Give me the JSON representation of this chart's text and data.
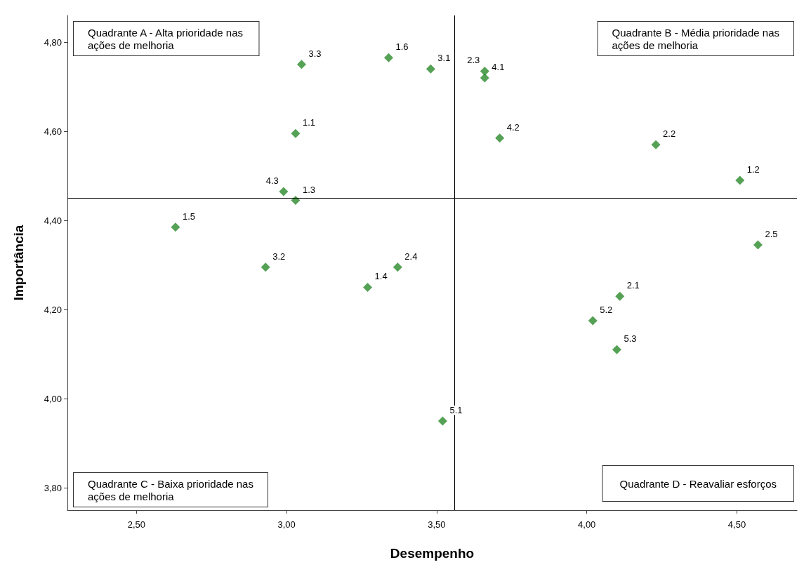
{
  "chart_data": {
    "type": "scatter",
    "xlabel": "Desempenho",
    "ylabel": "Importância",
    "x": [
      3.05,
      3.34,
      3.48,
      3.66,
      3.66,
      3.03,
      3.71,
      4.23,
      4.51,
      2.99,
      3.03,
      2.63,
      4.57,
      2.93,
      3.37,
      3.27,
      4.11,
      4.02,
      4.1,
      3.52
    ],
    "values": [
      4.75,
      4.765,
      4.74,
      4.735,
      4.72,
      4.595,
      4.585,
      4.57,
      4.49,
      4.465,
      4.445,
      4.385,
      4.345,
      4.295,
      4.295,
      4.25,
      4.23,
      4.175,
      4.11,
      3.95
    ],
    "color": "#2b8a2b",
    "marker": "diamond",
    "grid": false,
    "xlim": [
      2.27,
      4.7
    ],
    "ylim": [
      3.75,
      4.86
    ],
    "xticks": [
      {
        "value": 2.5,
        "label": "2,50"
      },
      {
        "value": 3,
        "label": "3,00"
      },
      {
        "value": 3.5,
        "label": "3,50"
      },
      {
        "value": 4,
        "label": "4,00"
      },
      {
        "value": 4.5,
        "label": "4,50"
      }
    ],
    "yticks": [
      {
        "value": 3.8,
        "label": "3,80"
      },
      {
        "value": 4,
        "label": "4,00"
      },
      {
        "value": 4.2,
        "label": "4,20"
      },
      {
        "value": 4.4,
        "label": "4,40"
      },
      {
        "value": 4.6,
        "label": "4,60"
      },
      {
        "value": 4.8,
        "label": "4,80"
      }
    ],
    "ref_lines": [
      {
        "axis": "x",
        "value": 3.56,
        "color": "#000000"
      },
      {
        "axis": "y",
        "value": 4.45,
        "color": "#000000"
      }
    ],
    "annotations": [
      "Quadrante A - Alta prioridade nas\nações de melhoria",
      "Quadrante B - Média prioridade nas\nações de melhoria",
      "Quadrante C - Baixa prioridade nas\nações de melhoria",
      "Quadrante D - Reavaliar esforços",
      {
        "text": "3.3",
        "x": 3.05,
        "y": 4.75
      },
      {
        "text": "1.6",
        "x": 3.34,
        "y": 4.765
      },
      {
        "text": "3.1",
        "x": 3.48,
        "y": 4.74
      },
      {
        "text": "2.3",
        "x": 3.66,
        "y": 4.735
      },
      {
        "text": "4.1",
        "x": 3.66,
        "y": 4.72
      },
      {
        "text": "1.1",
        "x": 3.03,
        "y": 4.595
      },
      {
        "text": "4.2",
        "x": 3.71,
        "y": 4.585
      },
      {
        "text": "2.2",
        "x": 4.23,
        "y": 4.57
      },
      {
        "text": "1.2",
        "x": 4.51,
        "y": 4.49
      },
      {
        "text": "4.3",
        "x": 2.99,
        "y": 4.465
      },
      {
        "text": "1.3",
        "x": 3.03,
        "y": 4.445
      },
      {
        "text": "1.5",
        "x": 2.63,
        "y": 4.385
      },
      {
        "text": "2.5",
        "x": 4.57,
        "y": 4.345
      },
      {
        "text": "3.2",
        "x": 2.93,
        "y": 4.295
      },
      {
        "text": "2.4",
        "x": 3.37,
        "y": 4.295
      },
      {
        "text": "1.4",
        "x": 3.27,
        "y": 4.25
      },
      {
        "text": "2.1",
        "x": 4.11,
        "y": 4.23
      },
      {
        "text": "5.2",
        "x": 4.02,
        "y": 4.175
      },
      {
        "text": "5.3",
        "x": 4.1,
        "y": 4.11
      },
      {
        "text": "5.1",
        "x": 3.52,
        "y": 3.95
      }
    ]
  }
}
